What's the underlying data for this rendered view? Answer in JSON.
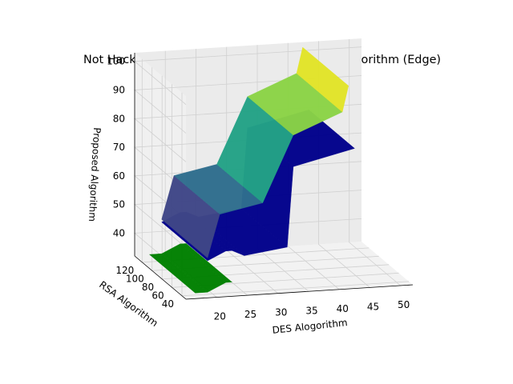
{
  "chart_data": {
    "type": "surface",
    "title": "Not Hacked through DES, RSA and Proposed Algorithm (Edge)",
    "xlabel": "DES Alogorithm",
    "ylabel": "RSA Algorithm",
    "zlabel": "Proposed Algorithm",
    "x_ticks": [
      "20",
      "25",
      "30",
      "35",
      "40",
      "45",
      "50"
    ],
    "y_ticks": [
      "40",
      "60",
      "80",
      "100",
      "120"
    ],
    "z_ticks": [
      "40",
      "50",
      "60",
      "70",
      "80",
      "90",
      "100"
    ],
    "xlim": [
      15,
      52
    ],
    "ylim": [
      32,
      135
    ],
    "zlim": [
      32,
      103
    ],
    "grid": true,
    "colormap": "viridis",
    "series": [
      {
        "color": "#00008b",
        "points": [
          {
            "x": 19,
            "y": 38,
            "z": 44
          },
          {
            "x": 19,
            "y": 130,
            "z": 44
          },
          {
            "x": 22,
            "y": 38,
            "z": 47
          },
          {
            "x": 22,
            "y": 130,
            "z": 47
          },
          {
            "x": 23,
            "y": 38,
            "z": 47
          },
          {
            "x": 23,
            "y": 130,
            "z": 47
          },
          {
            "x": 25,
            "y": 38,
            "z": 45
          },
          {
            "x": 25,
            "y": 130,
            "z": 45
          },
          {
            "x": 32,
            "y": 38,
            "z": 47
          },
          {
            "x": 32,
            "y": 130,
            "z": 47
          },
          {
            "x": 33,
            "y": 38,
            "z": 75
          },
          {
            "x": 33,
            "y": 130,
            "z": 75
          },
          {
            "x": 43,
            "y": 38,
            "z": 80
          },
          {
            "x": 43,
            "y": 130,
            "z": 80
          }
        ]
      },
      {
        "color": "#008000",
        "points": [
          {
            "x": 17,
            "y": 38,
            "z": 33
          },
          {
            "x": 17,
            "y": 130,
            "z": 33
          },
          {
            "x": 19,
            "y": 38,
            "z": 33
          },
          {
            "x": 19,
            "y": 130,
            "z": 33
          },
          {
            "x": 22,
            "y": 38,
            "z": 36
          },
          {
            "x": 22,
            "y": 130,
            "z": 36
          },
          {
            "x": 23,
            "y": 38,
            "z": 36
          },
          {
            "x": 23,
            "y": 130,
            "z": 36
          }
        ]
      },
      {
        "color": "viridis",
        "points": [
          {
            "x": 19,
            "y": 38,
            "z": 45
          },
          {
            "x": 19,
            "y": 130,
            "z": 45
          },
          {
            "x": 21,
            "y": 38,
            "z": 60
          },
          {
            "x": 21,
            "y": 130,
            "z": 60
          },
          {
            "x": 28,
            "y": 38,
            "z": 63
          },
          {
            "x": 28,
            "y": 130,
            "z": 63
          },
          {
            "x": 33,
            "y": 38,
            "z": 86
          },
          {
            "x": 33,
            "y": 130,
            "z": 86
          },
          {
            "x": 41,
            "y": 38,
            "z": 93
          },
          {
            "x": 41,
            "y": 130,
            "z": 93
          },
          {
            "x": 42,
            "y": 38,
            "z": 102
          },
          {
            "x": 42,
            "y": 130,
            "z": 102
          }
        ]
      }
    ]
  }
}
